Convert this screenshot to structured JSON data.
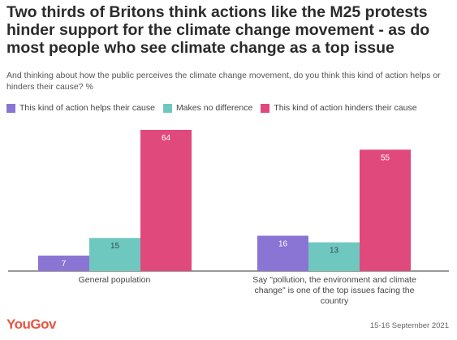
{
  "title": "Two thirds of Britons think actions like the M25 protests hinder support for the climate change movement - as do most people who see climate change as a top issue",
  "subtitle": "And thinking about how the public perceives the climate change movement, do you think this kind of action helps or hinders their cause? %",
  "footer": {
    "brand": "YouGov",
    "date": "15-16 September 2021"
  },
  "chart_data": {
    "type": "bar",
    "categories": [
      "General population",
      "Say \"pollution, the environment and climate change\" is one of the top issues facing the country"
    ],
    "series": [
      {
        "name": "This kind of action helps their cause",
        "values": [
          7,
          16
        ],
        "color": "#8a75d4"
      },
      {
        "name": "Makes no difference",
        "values": [
          15,
          13
        ],
        "color": "#6fc8c0"
      },
      {
        "name": "This kind of action hinders their cause",
        "values": [
          64,
          55
        ],
        "color": "#e0497c"
      }
    ],
    "legend": "top-left",
    "grid": false,
    "ylim": [
      0,
      64
    ]
  }
}
